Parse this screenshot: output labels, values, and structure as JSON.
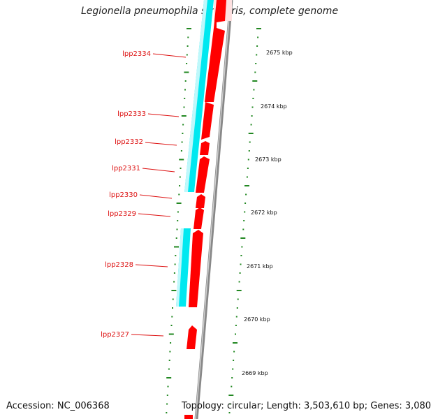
{
  "title": "Legionella pneumophila str. Paris, complete genome",
  "accession_text": "Accession: NC_006368",
  "summary_text": "Topology: circular; Length: 3,503,610 bp; Genes: 3,080",
  "colors": {
    "gene_forward": "#ff0000",
    "feature_cyan": "#00e8f0",
    "backbone": "#888888",
    "ruler_dots": "#228822",
    "label": "#dd1111",
    "label_line": "#dd1111"
  },
  "genes": [
    {
      "name": "lpp2334"
    },
    {
      "name": "lpp2333"
    },
    {
      "name": "lpp2332"
    },
    {
      "name": "lpp2331"
    },
    {
      "name": "lpp2330"
    },
    {
      "name": "lpp2329"
    },
    {
      "name": "lpp2328"
    },
    {
      "name": "lpp2327"
    }
  ],
  "ruler_ticks": [
    {
      "label": "2675 kbp"
    },
    {
      "label": "2674 kbp"
    },
    {
      "label": "2673 kbp"
    },
    {
      "label": "2672 kbp"
    },
    {
      "label": "2671 kbp"
    },
    {
      "label": "2670 kbp"
    },
    {
      "label": "2669 kbp"
    }
  ]
}
